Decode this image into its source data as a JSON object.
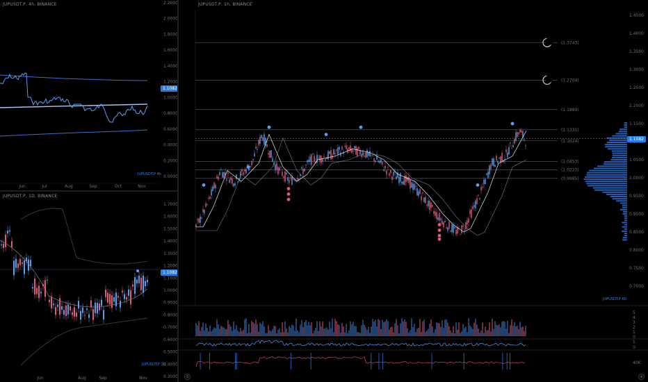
{
  "top_left": {
    "title": "JUPUSDT.P, 4h, BINANCE",
    "price_tag": "1.1082",
    "watermark": "JUPUSDT.P 4h",
    "y_ticks": [
      "2.2000",
      "2.0000",
      "1.8000",
      "1.6000",
      "1.4000",
      "1.2000",
      "1.0000",
      "0.8000",
      "0.6000",
      "0.4000",
      "0.2000",
      "0.0000"
    ],
    "x_ticks": [
      "Jun",
      "Jul",
      "Aug",
      "Sep",
      "Oct",
      "Nov"
    ]
  },
  "bottom_left": {
    "title": "JUPUSDT.P, 1D, BINANCE",
    "price_tag": "1.1082",
    "watermark": "JUPUSDT.P 1D",
    "y_ticks": [
      "1.7000",
      "1.6000",
      "1.5000",
      "1.4000",
      "1.3000",
      "1.2000",
      "1.1000",
      "1.0000",
      "0.9000",
      "0.8000",
      "0.7000",
      "0.6000",
      "0.5000",
      "0.4000",
      "0.3000"
    ],
    "x_ticks": [
      "Jun",
      "Aug",
      "Sep",
      "Nov"
    ]
  },
  "main": {
    "title": "JUPUSDT.P, 1h, BINANCE",
    "price_tag": "1.1082",
    "watermark": "JUPUSDT.P 60",
    "y_ticks": [
      "1.4500",
      "1.4000",
      "1.3500",
      "1.3000",
      "1.2500",
      "1.2000",
      "1.1500",
      "1.1000",
      "1.0500",
      "1.0000",
      "0.9500",
      "0.9000",
      "0.8500",
      "0.8000",
      "0.7500",
      "0.7000"
    ],
    "levels": [
      {
        "label": "(1.3743)",
        "value": 1.3743
      },
      {
        "label": "(1.2704)",
        "value": 1.2704
      },
      {
        "label": "(1.1889)",
        "value": 1.1889
      },
      {
        "label": "(1.1331)",
        "value": 1.1331
      },
      {
        "label": "(1.1024)",
        "value": 1.1024
      },
      {
        "label": "(1.0453)",
        "value": 1.0453
      },
      {
        "label": "(1.0223)",
        "value": 1.0223
      },
      {
        "label": "(0.9985)",
        "value": 0.9985
      }
    ],
    "x_ticks": [
      "2:00",
      "21",
      "23",
      "25",
      "12:00",
      "28",
      "30",
      "Nov",
      "12:00",
      "4",
      "6",
      "8",
      "12:00",
      "11",
      "13",
      "15"
    ],
    "volume_ticks": [
      "5",
      "4",
      "3",
      "2",
      "1",
      "0"
    ],
    "osc1_ticks": [
      "1",
      "0"
    ],
    "osc2_ticks": [
      "40K"
    ]
  },
  "colors": {
    "up": "#5aa0f0",
    "down": "#e05c7a",
    "accent": "#2a7de1",
    "grid": "#15181e"
  }
}
